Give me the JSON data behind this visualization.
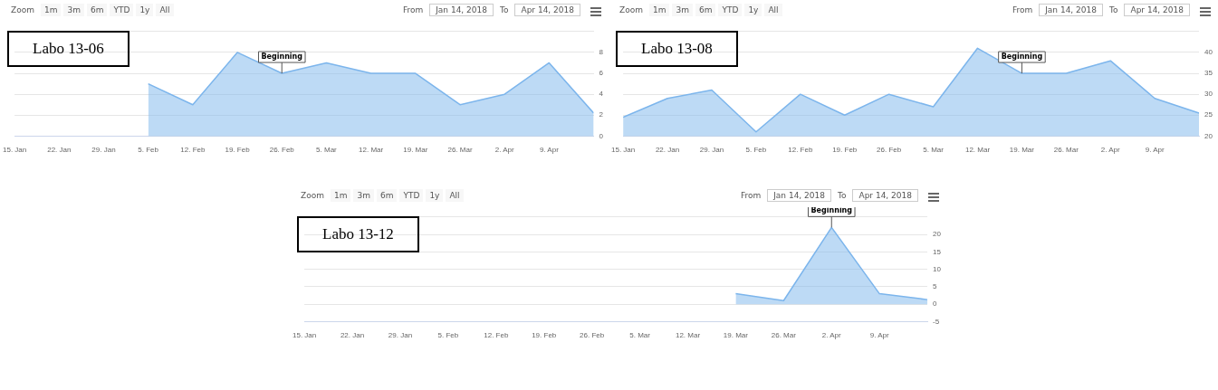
{
  "chart_data": [
    {
      "type": "area",
      "title": "Labo 13-06",
      "x": [
        "2018-02-05",
        "2018-02-12",
        "2018-02-19",
        "2018-02-26",
        "2018-03-05",
        "2018-03-12",
        "2018-03-19",
        "2018-03-26",
        "2018-04-02",
        "2018-04-09",
        "2018-04-16"
      ],
      "series": [
        {
          "color": "#7cb5ec",
          "values": [
            5,
            3,
            8,
            6,
            7,
            6,
            6,
            3,
            4,
            7,
            2.2
          ]
        }
      ],
      "xlim": [
        "2018-01-15",
        "2018-04-16"
      ],
      "xticks": [
        {
          "value": "2018-01-15",
          "label": "15. Jan"
        },
        {
          "value": "2018-01-22",
          "label": "22. Jan"
        },
        {
          "value": "2018-01-29",
          "label": "29. Jan"
        },
        {
          "value": "2018-02-05",
          "label": "5. Feb"
        },
        {
          "value": "2018-02-12",
          "label": "12. Feb"
        },
        {
          "value": "2018-02-19",
          "label": "19. Feb"
        },
        {
          "value": "2018-02-26",
          "label": "26. Feb"
        },
        {
          "value": "2018-03-05",
          "label": "5. Mar"
        },
        {
          "value": "2018-03-12",
          "label": "12. Mar"
        },
        {
          "value": "2018-03-19",
          "label": "19. Mar"
        },
        {
          "value": "2018-03-26",
          "label": "26. Mar"
        },
        {
          "value": "2018-04-02",
          "label": "2. Apr"
        },
        {
          "value": "2018-04-09",
          "label": "9. Apr"
        }
      ],
      "ylim": [
        0,
        10
      ],
      "yticks": [
        0,
        2,
        4,
        6,
        8,
        {
          "value": 10,
          "label": null
        }
      ],
      "grid": "y",
      "legend": false,
      "annotations": [
        "Zoom",
        "1m",
        "3m",
        "6m",
        "YTD",
        "1y",
        "All",
        "From",
        "Jan 14, 2018",
        "To",
        "Apr 14, 2018",
        {
          "text": "Beginning",
          "x": "2018-02-26",
          "y": 6
        }
      ]
    },
    {
      "type": "area",
      "title": "Labo 13-08",
      "x": [
        "2018-01-15",
        "2018-01-22",
        "2018-01-29",
        "2018-02-05",
        "2018-02-12",
        "2018-02-19",
        "2018-02-26",
        "2018-03-05",
        "2018-03-12",
        "2018-03-19",
        "2018-03-26",
        "2018-04-02",
        "2018-04-09",
        "2018-04-16"
      ],
      "series": [
        {
          "color": "#7cb5ec",
          "values": [
            24.5,
            29,
            31,
            21,
            30,
            25,
            30,
            27,
            41,
            35,
            35,
            38,
            29,
            25.5
          ]
        }
      ],
      "xlim": [
        "2018-01-15",
        "2018-04-16"
      ],
      "xticks": [
        {
          "value": "2018-01-15",
          "label": "15. Jan"
        },
        {
          "value": "2018-01-22",
          "label": "22. Jan"
        },
        {
          "value": "2018-01-29",
          "label": "29. Jan"
        },
        {
          "value": "2018-02-05",
          "label": "5. Feb"
        },
        {
          "value": "2018-02-12",
          "label": "12. Feb"
        },
        {
          "value": "2018-02-19",
          "label": "19. Feb"
        },
        {
          "value": "2018-02-26",
          "label": "26. Feb"
        },
        {
          "value": "2018-03-05",
          "label": "5. Mar"
        },
        {
          "value": "2018-03-12",
          "label": "12. Mar"
        },
        {
          "value": "2018-03-19",
          "label": "19. Mar"
        },
        {
          "value": "2018-03-26",
          "label": "26. Mar"
        },
        {
          "value": "2018-04-02",
          "label": "2. Apr"
        },
        {
          "value": "2018-04-09",
          "label": "9. Apr"
        }
      ],
      "ylim": [
        20,
        45
      ],
      "yticks": [
        20,
        25,
        30,
        35,
        40,
        {
          "value": 45,
          "label": null
        }
      ],
      "grid": "y",
      "legend": false,
      "annotations": [
        "Zoom",
        "1m",
        "3m",
        "6m",
        "YTD",
        "1y",
        "All",
        "From",
        "Jan 14, 2018",
        "To",
        "Apr 14, 2018",
        {
          "text": "Beginning",
          "x": "2018-03-19",
          "y": 35
        }
      ]
    },
    {
      "type": "area",
      "title": "Labo 13-12",
      "x": [
        "2018-03-19",
        "2018-03-26",
        "2018-04-02",
        "2018-04-09",
        "2018-04-16"
      ],
      "series": [
        {
          "color": "#7cb5ec",
          "values": [
            3,
            1,
            22,
            3,
            1.3
          ]
        }
      ],
      "xlim": [
        "2018-01-15",
        "2018-04-16"
      ],
      "xticks": [
        {
          "value": "2018-01-15",
          "label": "15. Jan"
        },
        {
          "value": "2018-01-22",
          "label": "22. Jan"
        },
        {
          "value": "2018-01-29",
          "label": "29. Jan"
        },
        {
          "value": "2018-02-05",
          "label": "5. Feb"
        },
        {
          "value": "2018-02-12",
          "label": "12. Feb"
        },
        {
          "value": "2018-02-19",
          "label": "19. Feb"
        },
        {
          "value": "2018-02-26",
          "label": "26. Feb"
        },
        {
          "value": "2018-03-05",
          "label": "5. Mar"
        },
        {
          "value": "2018-03-12",
          "label": "12. Mar"
        },
        {
          "value": "2018-03-19",
          "label": "19. Mar"
        },
        {
          "value": "2018-03-26",
          "label": "26. Mar"
        },
        {
          "value": "2018-04-02",
          "label": "2. Apr"
        },
        {
          "value": "2018-04-09",
          "label": "9. Apr"
        }
      ],
      "ylim": [
        -5,
        25
      ],
      "yticks": [
        -5,
        0,
        5,
        10,
        15,
        20,
        {
          "value": 25,
          "label": null
        }
      ],
      "grid": "y",
      "legend": false,
      "annotations": [
        "Zoom",
        "1m",
        "3m",
        "6m",
        "YTD",
        "1y",
        "All",
        "From",
        "Jan 14, 2018",
        "To",
        "Apr 14, 2018",
        {
          "text": "Beginning",
          "x": "2018-04-02",
          "y": 22
        }
      ]
    }
  ]
}
